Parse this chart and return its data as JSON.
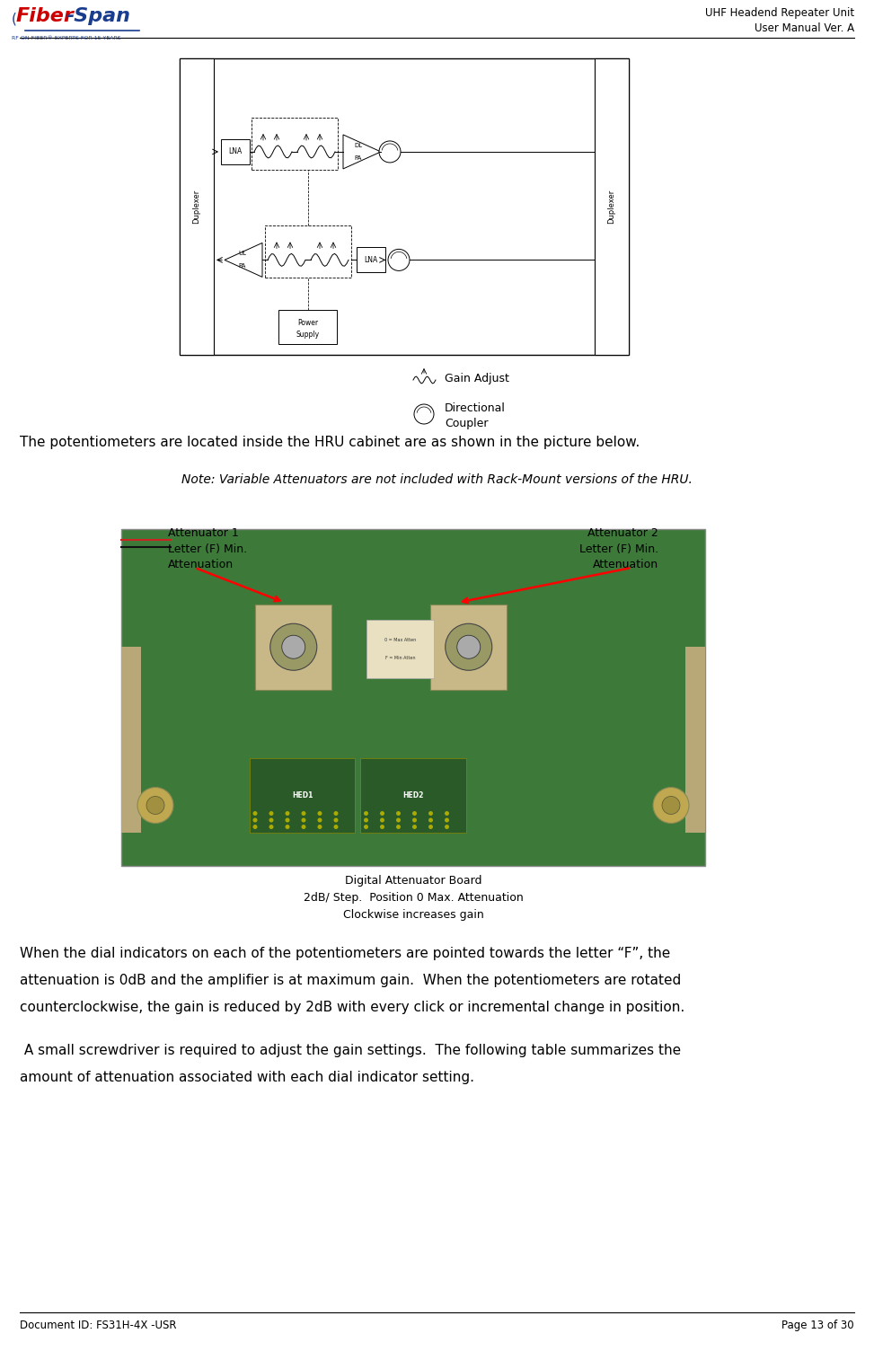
{
  "page_width": 9.73,
  "page_height": 15.04,
  "dpi": 100,
  "bg_color": "#ffffff",
  "header_title_line1": "UHF Headend Repeater Unit",
  "header_title_line2": "User Manual Ver. A",
  "footer_doc_id": "Document ID: FS31H-4X -USR",
  "footer_page": "Page 13 of 30",
  "text_para1": "The potentiometers are located inside the HRU cabinet are as shown in the picture below.",
  "text_note": "Note: Variable Attenuators are not included with Rack-Mount versions of the HRU.",
  "text_para2_l1": "When the dial indicators on each of the potentiometers are pointed towards the letter “F”, the",
  "text_para2_l2": "attenuation is 0dB and the amplifier is at maximum gain.  When the potentiometers are rotated",
  "text_para2_l3": "counterclockwise, the gain is reduced by 2dB with every click or incremental change in position.",
  "text_para3_l1": " A small screwdriver is required to adjust the gain settings.  The following table summarizes the",
  "text_para3_l2": "amount of attenuation associated with each dial indicator setting.",
  "attenuator1_label_l1": "Attenuator 1",
  "attenuator1_label_l2": "Letter (F) Min.",
  "attenuator1_label_l3": "Attenuation",
  "attenuator2_label_l1": "Attenuator 2",
  "attenuator2_label_l2": "Letter (F) Min.",
  "attenuator2_label_l3": "Attenuation",
  "digital_board_l1": "Digital Attenuator Board",
  "digital_board_l2": "2dB/ Step.  Position 0 Max. Attenuation",
  "digital_board_l3": "Clockwise increases gain",
  "legend_gain": "Gain Adjust",
  "legend_directional_l1": "Directional",
  "legend_directional_l2": "Coupler",
  "text_color": "#000000",
  "header_fontsize": 8.5,
  "body_fontsize": 11,
  "note_fontsize": 10,
  "footer_fontsize": 8.5,
  "label_fontsize": 9,
  "small_fontsize": 8,
  "legend_fontsize": 9,
  "photo_green": "#3d7a3a",
  "photo_green_dark": "#2d6a2a"
}
